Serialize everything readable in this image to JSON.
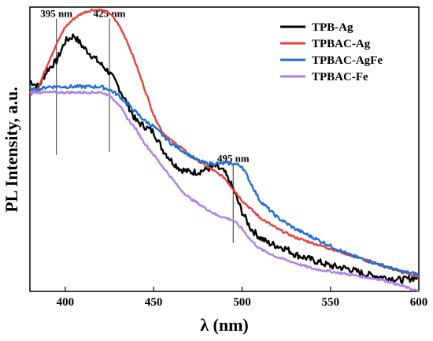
{
  "chart_data": {
    "type": "line",
    "xlabel": "λ (nm)",
    "ylabel": "PL Intensity, a.u.",
    "xlim": [
      380,
      600
    ],
    "ylim": [
      0,
      1
    ],
    "xticks": [
      400,
      450,
      500,
      550,
      600
    ],
    "yticks_visible": false,
    "grid": false,
    "legend_position": "top-right",
    "annotations": [
      {
        "label": "395 nm",
        "x": 395,
        "y_from": 0.48,
        "y_to": 0.96
      },
      {
        "label": "425 nm",
        "x": 425,
        "y_from": 0.49,
        "y_to": 0.96
      },
      {
        "label": "495 nm",
        "x": 495,
        "y_from": 0.17,
        "y_to": 0.45
      }
    ],
    "series": [
      {
        "name": "TPB-Ag",
        "color": "#000000",
        "x": [
          380,
          385,
          390,
          395,
          400,
          405,
          410,
          415,
          420,
          425,
          430,
          435,
          440,
          445,
          450,
          455,
          460,
          465,
          470,
          475,
          480,
          485,
          490,
          495,
          500,
          505,
          510,
          515,
          520,
          525,
          530,
          540,
          550,
          560,
          570,
          580,
          590,
          600
        ],
        "values": [
          0.74,
          0.72,
          0.78,
          0.81,
          0.88,
          0.9,
          0.86,
          0.83,
          0.8,
          0.77,
          0.72,
          0.66,
          0.6,
          0.58,
          0.56,
          0.5,
          0.46,
          0.43,
          0.42,
          0.42,
          0.43,
          0.44,
          0.42,
          0.36,
          0.28,
          0.22,
          0.19,
          0.17,
          0.16,
          0.15,
          0.13,
          0.11,
          0.09,
          0.08,
          0.06,
          0.05,
          0.04,
          0.05
        ]
      },
      {
        "name": "TPBAC-Ag",
        "color": "#e8413a",
        "x": [
          380,
          385,
          390,
          395,
          400,
          405,
          410,
          415,
          420,
          425,
          430,
          435,
          440,
          445,
          450,
          455,
          460,
          465,
          470,
          475,
          480,
          485,
          490,
          495,
          500,
          510,
          520,
          530,
          540,
          550,
          560,
          570,
          580,
          590,
          600
        ],
        "values": [
          0.69,
          0.72,
          0.8,
          0.87,
          0.93,
          0.96,
          0.98,
          0.99,
          0.99,
          0.98,
          0.94,
          0.88,
          0.8,
          0.71,
          0.62,
          0.56,
          0.53,
          0.51,
          0.48,
          0.46,
          0.44,
          0.42,
          0.4,
          0.36,
          0.32,
          0.26,
          0.22,
          0.19,
          0.17,
          0.15,
          0.13,
          0.11,
          0.09,
          0.07,
          0.05
        ]
      },
      {
        "name": "TPBAC-AgFe",
        "color": "#1f6fd1",
        "x": [
          380,
          385,
          390,
          395,
          400,
          405,
          410,
          415,
          420,
          425,
          430,
          435,
          440,
          445,
          450,
          455,
          460,
          465,
          470,
          475,
          480,
          485,
          490,
          495,
          500,
          505,
          510,
          520,
          530,
          540,
          550,
          560,
          570,
          580,
          590,
          600
        ],
        "values": [
          0.71,
          0.71,
          0.72,
          0.72,
          0.72,
          0.72,
          0.72,
          0.72,
          0.72,
          0.71,
          0.69,
          0.66,
          0.63,
          0.6,
          0.58,
          0.55,
          0.52,
          0.5,
          0.48,
          0.46,
          0.45,
          0.45,
          0.45,
          0.45,
          0.44,
          0.38,
          0.32,
          0.26,
          0.22,
          0.19,
          0.16,
          0.13,
          0.11,
          0.09,
          0.07,
          0.06
        ]
      },
      {
        "name": "TPBAC-Fe",
        "color": "#b07ee8",
        "x": [
          380,
          385,
          390,
          395,
          400,
          405,
          410,
          415,
          420,
          425,
          430,
          435,
          440,
          445,
          450,
          455,
          460,
          465,
          470,
          475,
          480,
          485,
          490,
          495,
          500,
          505,
          510,
          520,
          530,
          540,
          550,
          560,
          570,
          580,
          590,
          600
        ],
        "values": [
          0.7,
          0.7,
          0.7,
          0.7,
          0.7,
          0.7,
          0.7,
          0.7,
          0.7,
          0.69,
          0.66,
          0.61,
          0.57,
          0.52,
          0.48,
          0.44,
          0.4,
          0.36,
          0.33,
          0.31,
          0.29,
          0.27,
          0.26,
          0.25,
          0.22,
          0.18,
          0.15,
          0.12,
          0.1,
          0.08,
          0.07,
          0.06,
          0.05,
          0.04,
          0.02,
          0.0
        ]
      }
    ]
  }
}
